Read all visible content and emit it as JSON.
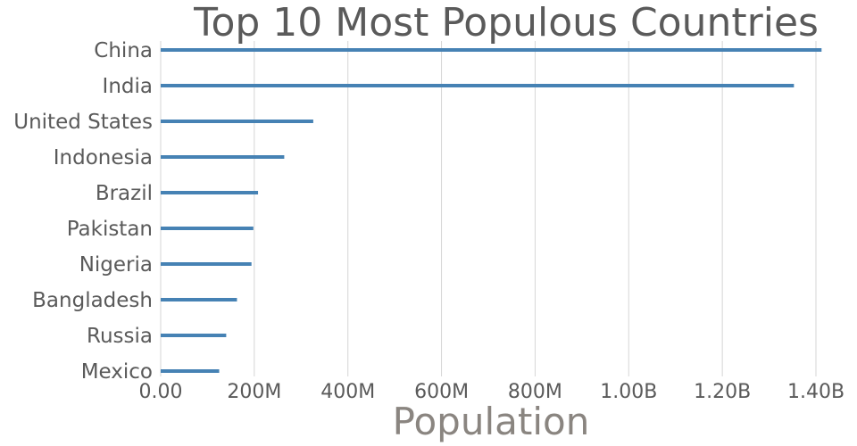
{
  "chart_data": {
    "type": "bar",
    "orientation": "horizontal",
    "title": "Top 10 Most Populous Countries",
    "xlabel": "Population",
    "ylabel": "",
    "categories": [
      "China",
      "India",
      "United States",
      "Indonesia",
      "Brazil",
      "Pakistan",
      "Nigeria",
      "Bangladesh",
      "Russia",
      "Mexico"
    ],
    "values": [
      1412000000,
      1353000000,
      326000000,
      264000000,
      208000000,
      198000000,
      194000000,
      163000000,
      140000000,
      125000000
    ],
    "xlim": [
      0,
      1400000000
    ],
    "xticks": [
      0,
      200000000,
      400000000,
      600000000,
      800000000,
      1000000000,
      1200000000,
      1400000000
    ],
    "xtick_labels": [
      "0.00",
      "200M",
      "400M",
      "600M",
      "800M",
      "1.00B",
      "1.20B",
      "1.40B"
    ],
    "grid": true,
    "bar_color": "#4682b4"
  }
}
